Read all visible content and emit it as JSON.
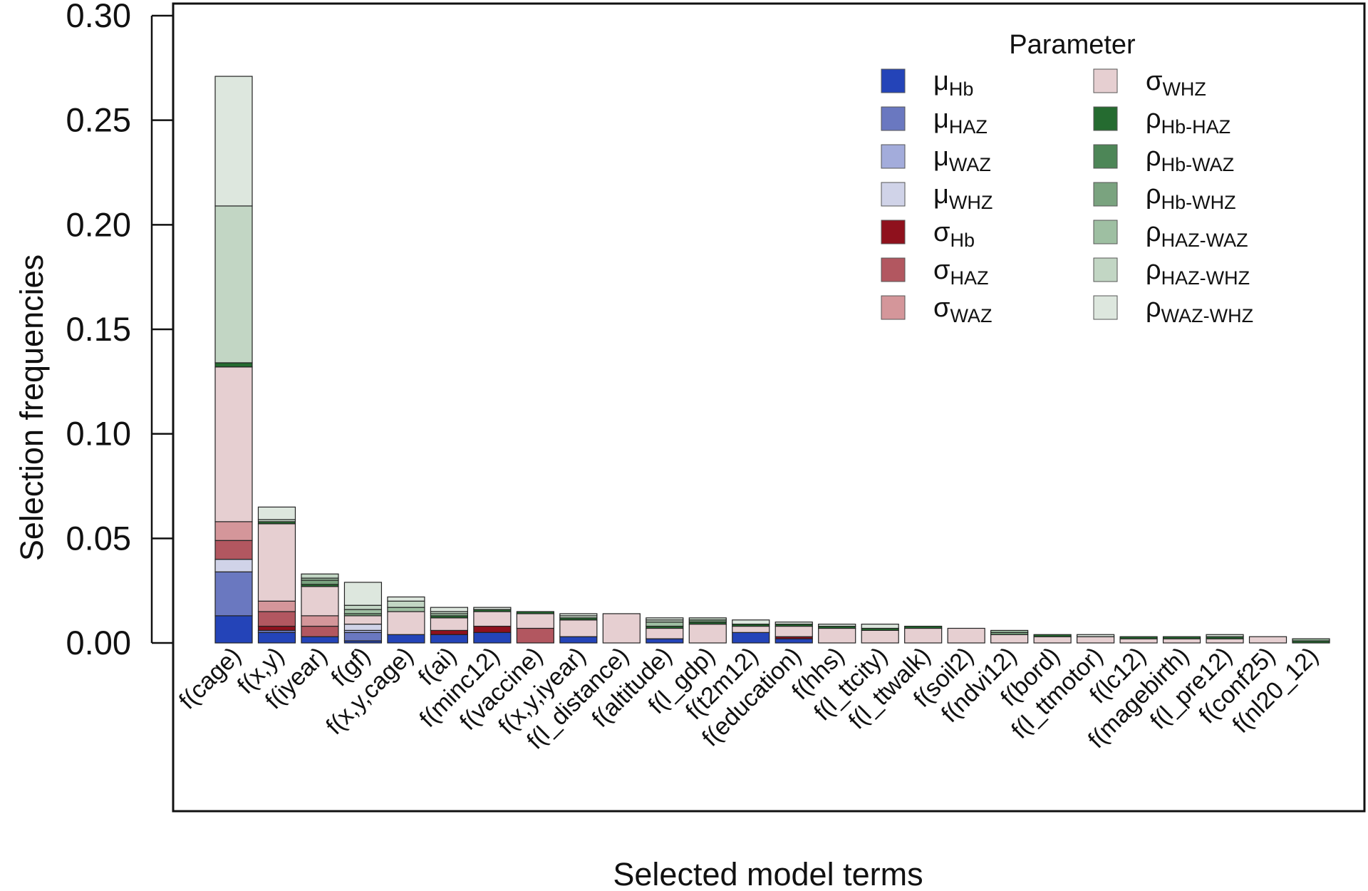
{
  "chart_data": {
    "type": "bar",
    "stacked": true,
    "xlabel": "Selected model terms",
    "ylabel": "Selection frequencies",
    "ylim": [
      0,
      0.3
    ],
    "yticks": [
      "0.00",
      "0.05",
      "0.10",
      "0.15",
      "0.20",
      "0.25",
      "0.30"
    ],
    "ytick_values": [
      0,
      0.05,
      0.1,
      0.15,
      0.2,
      0.25,
      0.3
    ],
    "grid": false,
    "legend": {
      "title": "Parameter",
      "placement": "top-right",
      "columns": 2
    },
    "categories": [
      "f(cage)",
      "f(x,y)",
      "f(iyear)",
      "f(gf)",
      "f(x,y,cage)",
      "f(ai)",
      "f(minc12)",
      "f(vaccine)",
      "f(x,y,iyear)",
      "f(l_distance)",
      "f(altitude)",
      "f(l_gdp)",
      "f(t2m12)",
      "f(education)",
      "f(hhs)",
      "f(l_ttcity)",
      "f(l_ttwalk)",
      "f(soil2)",
      "f(ndvi12)",
      "f(bord)",
      "f(l_ttmotor)",
      "f(lc12)",
      "f(magebirth)",
      "f(l_pre12)",
      "f(conf25)",
      "f(nl20_12)"
    ],
    "series": [
      {
        "name": "μ",
        "sub": "Hb",
        "color": "#2444b8",
        "values": [
          0.013,
          0.005,
          0.003,
          0.001,
          0.004,
          0.004,
          0.005,
          0,
          0.003,
          0,
          0.002,
          0,
          0.005,
          0.002,
          0,
          0,
          0,
          0,
          0,
          0,
          0,
          0,
          0,
          0,
          0,
          0
        ]
      },
      {
        "name": "μ",
        "sub": "HAZ",
        "color": "#6a78c0",
        "values": [
          0.021,
          0.001,
          0,
          0.004,
          0,
          0,
          0,
          0,
          0,
          0,
          0,
          0,
          0,
          0,
          0,
          0,
          0,
          0,
          0,
          0,
          0,
          0,
          0,
          0,
          0,
          0
        ]
      },
      {
        "name": "μ",
        "sub": "WAZ",
        "color": "#a3acdb",
        "values": [
          0,
          0,
          0,
          0.001,
          0,
          0,
          0,
          0,
          0,
          0,
          0,
          0,
          0,
          0,
          0,
          0,
          0,
          0,
          0,
          0,
          0,
          0,
          0,
          0,
          0,
          0
        ]
      },
      {
        "name": "μ",
        "sub": "WHZ",
        "color": "#d0d3e8",
        "values": [
          0.006,
          0,
          0,
          0.003,
          0,
          0,
          0,
          0,
          0,
          0,
          0,
          0,
          0,
          0,
          0,
          0,
          0,
          0,
          0,
          0,
          0,
          0,
          0,
          0,
          0,
          0
        ]
      },
      {
        "name": "σ",
        "sub": "Hb",
        "color": "#8f111d",
        "values": [
          0,
          0.002,
          0,
          0,
          0,
          0.002,
          0.003,
          0,
          0,
          0,
          0,
          0,
          0,
          0.001,
          0,
          0,
          0,
          0,
          0,
          0,
          0,
          0,
          0,
          0,
          0,
          0
        ]
      },
      {
        "name": "σ",
        "sub": "HAZ",
        "color": "#b25760",
        "values": [
          0.009,
          0.007,
          0.005,
          0,
          0,
          0,
          0,
          0.007,
          0,
          0,
          0,
          0,
          0,
          0,
          0,
          0,
          0,
          0,
          0,
          0,
          0,
          0,
          0,
          0,
          0,
          0
        ]
      },
      {
        "name": "σ",
        "sub": "WAZ",
        "color": "#d4969a",
        "values": [
          0.009,
          0.005,
          0.005,
          0,
          0,
          0,
          0,
          0,
          0,
          0,
          0,
          0,
          0,
          0,
          0,
          0,
          0,
          0,
          0,
          0,
          0,
          0,
          0,
          0,
          0,
          0
        ]
      },
      {
        "name": "σ",
        "sub": "WHZ",
        "color": "#e6cfd1",
        "values": [
          0.074,
          0.037,
          0.014,
          0.004,
          0.011,
          0.006,
          0.007,
          0.007,
          0.008,
          0.014,
          0.005,
          0.009,
          0.003,
          0.005,
          0.007,
          0.006,
          0.007,
          0.007,
          0.004,
          0.003,
          0.003,
          0.002,
          0.002,
          0.002,
          0.003,
          0
        ]
      },
      {
        "name": "ρ",
        "sub": "Hb-HAZ",
        "color": "#256b30",
        "values": [
          0.002,
          0.001,
          0.001,
          0,
          0,
          0.001,
          0.001,
          0.001,
          0.001,
          0,
          0.001,
          0.001,
          0.001,
          0.001,
          0.001,
          0.001,
          0.001,
          0,
          0,
          0.001,
          0,
          0.001,
          0.001,
          0.001,
          0,
          0.001
        ]
      },
      {
        "name": "ρ",
        "sub": "Hb-WAZ",
        "color": "#4d8657",
        "values": [
          0,
          0,
          0,
          0,
          0,
          0,
          0,
          0,
          0,
          0,
          0,
          0,
          0,
          0,
          0,
          0,
          0,
          0,
          0,
          0,
          0,
          0,
          0,
          0,
          0,
          0
        ]
      },
      {
        "name": "ρ",
        "sub": "Hb-WHZ",
        "color": "#7aa37f",
        "values": [
          0,
          0,
          0.002,
          0.001,
          0,
          0,
          0,
          0,
          0,
          0,
          0,
          0.001,
          0,
          0,
          0,
          0,
          0,
          0,
          0.001,
          0,
          0,
          0,
          0,
          0,
          0,
          0
        ]
      },
      {
        "name": "ρ",
        "sub": "HAZ-WAZ",
        "color": "#9ebfa2",
        "values": [
          0,
          0,
          0.001,
          0.002,
          0.002,
          0.001,
          0,
          0,
          0,
          0,
          0.002,
          0,
          0,
          0,
          0,
          0,
          0,
          0,
          0.001,
          0,
          0,
          0,
          0,
          0,
          0,
          0.001
        ]
      },
      {
        "name": "ρ",
        "sub": "HAZ-WHZ",
        "color": "#c2d6c4",
        "values": [
          0.075,
          0.001,
          0.002,
          0.002,
          0.003,
          0.001,
          0,
          0,
          0.001,
          0,
          0.001,
          0.001,
          0,
          0,
          0,
          0,
          0,
          0,
          0,
          0,
          0,
          0,
          0,
          0,
          0,
          0
        ]
      },
      {
        "name": "ρ",
        "sub": "WAZ-WHZ",
        "color": "#dde7de",
        "values": [
          0.062,
          0.006,
          0,
          0.011,
          0.002,
          0.002,
          0.001,
          0,
          0.001,
          0,
          0.001,
          0,
          0.002,
          0.001,
          0.001,
          0.002,
          0,
          0,
          0,
          0,
          0.001,
          0,
          0,
          0.001,
          0,
          0
        ]
      }
    ]
  }
}
